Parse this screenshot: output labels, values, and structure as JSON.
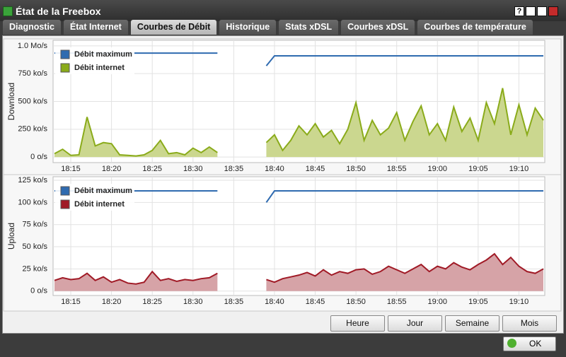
{
  "window": {
    "title": "État de la Freebox",
    "help": "?"
  },
  "tabs": [
    "Diagnostic",
    "État Internet",
    "Courbes de Débit",
    "Historique",
    "Stats xDSL",
    "Courbes xDSL",
    "Courbes de température"
  ],
  "active_tab": 2,
  "chart_data": [
    {
      "type": "line",
      "y_label": "Download",
      "grid": true,
      "legend": "top-left",
      "x": [
        "18:13",
        "18:14",
        "18:15",
        "18:16",
        "18:17",
        "18:18",
        "18:19",
        "18:20",
        "18:21",
        "18:22",
        "18:23",
        "18:24",
        "18:25",
        "18:26",
        "18:27",
        "18:28",
        "18:29",
        "18:30",
        "18:31",
        "18:32",
        "18:33",
        "18:34",
        "18:35",
        "18:36",
        "18:37",
        "18:38",
        "18:39",
        "18:40",
        "18:41",
        "18:42",
        "18:43",
        "18:44",
        "18:45",
        "18:46",
        "18:47",
        "18:48",
        "18:49",
        "18:50",
        "18:51",
        "18:52",
        "18:53",
        "18:54",
        "18:55",
        "18:56",
        "18:57",
        "18:58",
        "18:59",
        "19:00",
        "19:01",
        "19:02",
        "19:03",
        "19:04",
        "19:05",
        "19:06",
        "19:07",
        "19:08",
        "19:09",
        "19:10",
        "19:11",
        "19:12",
        "19:13"
      ],
      "xticks": [
        "18:15",
        "18:20",
        "18:25",
        "18:30",
        "18:35",
        "18:40",
        "18:45",
        "18:50",
        "18:55",
        "19:00",
        "19:05",
        "19:10"
      ],
      "ylim": [
        -50,
        1050
      ],
      "yticks": [
        {
          "value": 0,
          "label": "0 o/s"
        },
        {
          "value": 250,
          "label": "250 ko/s"
        },
        {
          "value": 500,
          "label": "500 ko/s"
        },
        {
          "value": 750,
          "label": "750 ko/s"
        },
        {
          "value": 1000,
          "label": "1.0 Mo/s"
        }
      ],
      "series": [
        {
          "name": "Débit maximum",
          "color": "#2f6bb0",
          "values": [
            935,
            935,
            935,
            935,
            935,
            935,
            935,
            935,
            935,
            935,
            935,
            935,
            935,
            935,
            935,
            935,
            935,
            935,
            935,
            935,
            935,
            null,
            null,
            null,
            null,
            null,
            820,
            910,
            910,
            910,
            910,
            910,
            910,
            910,
            910,
            910,
            910,
            910,
            910,
            910,
            910,
            910,
            910,
            910,
            910,
            910,
            910,
            910,
            910,
            910,
            910,
            910,
            910,
            910,
            910,
            910,
            910,
            910,
            910,
            910,
            910
          ]
        },
        {
          "name": "Débit internet",
          "color": "#8aab1a",
          "fill": "#cbd78f",
          "values": [
            30,
            70,
            15,
            20,
            360,
            100,
            130,
            120,
            20,
            15,
            10,
            20,
            60,
            150,
            30,
            40,
            20,
            80,
            40,
            90,
            40,
            null,
            null,
            null,
            null,
            null,
            130,
            200,
            60,
            150,
            280,
            200,
            300,
            180,
            240,
            120,
            250,
            490,
            150,
            330,
            200,
            260,
            400,
            150,
            320,
            460,
            200,
            300,
            150,
            450,
            230,
            350,
            150,
            490,
            300,
            620,
            200,
            470,
            200,
            440,
            330
          ]
        }
      ]
    },
    {
      "type": "line",
      "y_label": "Upload",
      "grid": true,
      "legend": "top-left",
      "x": [
        "18:13",
        "18:14",
        "18:15",
        "18:16",
        "18:17",
        "18:18",
        "18:19",
        "18:20",
        "18:21",
        "18:22",
        "18:23",
        "18:24",
        "18:25",
        "18:26",
        "18:27",
        "18:28",
        "18:29",
        "18:30",
        "18:31",
        "18:32",
        "18:33",
        "18:34",
        "18:35",
        "18:36",
        "18:37",
        "18:38",
        "18:39",
        "18:40",
        "18:41",
        "18:42",
        "18:43",
        "18:44",
        "18:45",
        "18:46",
        "18:47",
        "18:48",
        "18:49",
        "18:50",
        "18:51",
        "18:52",
        "18:53",
        "18:54",
        "18:55",
        "18:56",
        "18:57",
        "18:58",
        "18:59",
        "19:00",
        "19:01",
        "19:02",
        "19:03",
        "19:04",
        "19:05",
        "19:06",
        "19:07",
        "19:08",
        "19:09",
        "19:10",
        "19:11",
        "19:12",
        "19:13"
      ],
      "xticks": [
        "18:15",
        "18:20",
        "18:25",
        "18:30",
        "18:35",
        "18:40",
        "18:45",
        "18:50",
        "18:55",
        "19:00",
        "19:05",
        "19:10"
      ],
      "ylim": [
        -5,
        129
      ],
      "yticks": [
        {
          "value": 0,
          "label": "0 o/s"
        },
        {
          "value": 25,
          "label": "25 ko/s"
        },
        {
          "value": 50,
          "label": "50 ko/s"
        },
        {
          "value": 75,
          "label": "75 ko/s"
        },
        {
          "value": 100,
          "label": "100 ko/s"
        },
        {
          "value": 125,
          "label": "125 ko/s"
        }
      ],
      "series": [
        {
          "name": "Débit maximum",
          "color": "#2f6bb0",
          "values": [
            113,
            113,
            113,
            113,
            113,
            113,
            113,
            113,
            113,
            113,
            113,
            113,
            113,
            113,
            113,
            113,
            113,
            113,
            113,
            113,
            113,
            null,
            null,
            null,
            null,
            null,
            100,
            113,
            113,
            113,
            113,
            113,
            113,
            113,
            113,
            113,
            113,
            113,
            113,
            113,
            113,
            113,
            113,
            113,
            113,
            113,
            113,
            113,
            113,
            113,
            113,
            113,
            113,
            113,
            113,
            113,
            113,
            113,
            113,
            113,
            113
          ]
        },
        {
          "name": "Débit internet",
          "color": "#a01a26",
          "fill": "#d6a3a7",
          "values": [
            12,
            15,
            13,
            14,
            20,
            12,
            16,
            10,
            13,
            9,
            8,
            10,
            22,
            12,
            14,
            11,
            13,
            12,
            14,
            15,
            20,
            null,
            null,
            null,
            null,
            null,
            13,
            10,
            14,
            16,
            18,
            21,
            17,
            24,
            18,
            22,
            20,
            24,
            25,
            19,
            22,
            28,
            24,
            20,
            25,
            30,
            22,
            28,
            25,
            32,
            27,
            24,
            30,
            35,
            42,
            30,
            38,
            28,
            22,
            20,
            25
          ]
        }
      ]
    }
  ],
  "range_buttons": [
    "Heure",
    "Jour",
    "Semaine",
    "Mois"
  ],
  "ok_button": "OK"
}
